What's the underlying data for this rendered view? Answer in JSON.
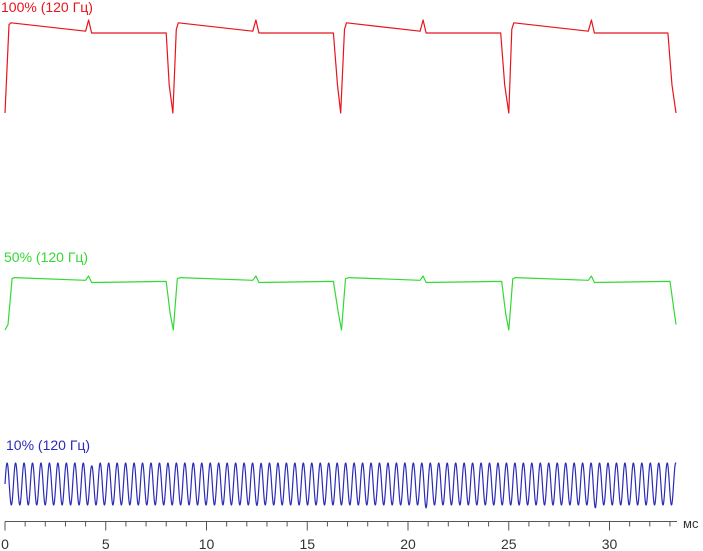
{
  "chart_data": {
    "type": "line",
    "title": "",
    "xlabel": "",
    "ylabel": "",
    "x_unit": "мс",
    "xlim": [
      0,
      33.3
    ],
    "x_ticks": [
      0,
      5,
      10,
      15,
      20,
      25,
      30
    ],
    "grid": false,
    "legend": "none",
    "series": [
      {
        "name": "100% (120 Гц)",
        "color": "#e8141c",
        "period_ms": 8.33,
        "pulse_ms": 8.2,
        "notch_ms": 4.2,
        "x": [
          0,
          0.2,
          0.3,
          4.0,
          4.15,
          4.3,
          8.0,
          8.15,
          8.33,
          8.5,
          8.6,
          12.3,
          12.45,
          12.6,
          16.3,
          16.5,
          16.66,
          16.85,
          16.95,
          20.6,
          20.75,
          20.9,
          24.6,
          24.8,
          25.0,
          25.15,
          25.25,
          28.95,
          29.1,
          29.25,
          32.9,
          33.1,
          33.3
        ],
        "y": [
          0,
          95,
          97,
          88,
          100,
          86,
          86,
          30,
          0,
          90,
          97,
          88,
          100,
          86,
          86,
          30,
          0,
          90,
          97,
          88,
          100,
          86,
          86,
          30,
          0,
          90,
          97,
          88,
          100,
          86,
          86,
          30,
          0
        ]
      },
      {
        "name": "50% (120 Гц)",
        "color": "#34d934",
        "period_ms": 8.33,
        "pulse_ms": 8.2,
        "notch_ms": 4.2,
        "x": [
          0,
          0.15,
          0.35,
          0.45,
          4.0,
          4.15,
          4.3,
          8.0,
          8.2,
          8.35,
          8.55,
          8.7,
          12.3,
          12.45,
          12.6,
          16.3,
          16.55,
          16.7,
          16.9,
          17.05,
          20.6,
          20.75,
          20.9,
          24.65,
          24.85,
          25.0,
          25.2,
          25.35,
          28.95,
          29.1,
          29.25,
          33.0,
          33.3
        ],
        "y": [
          0,
          10,
          95,
          97,
          92,
          100,
          88,
          90,
          30,
          0,
          95,
          97,
          92,
          100,
          88,
          90,
          30,
          0,
          95,
          97,
          92,
          100,
          88,
          90,
          30,
          0,
          95,
          97,
          92,
          100,
          88,
          90,
          10
        ]
      },
      {
        "name": "10% (120 Гц)",
        "color": "#2b2bb8",
        "oscillation_period_ms": 0.42,
        "amplitude": 100,
        "dropouts_ms": [
          4.3,
          12.6,
          20.9,
          29.3
        ]
      }
    ]
  }
}
